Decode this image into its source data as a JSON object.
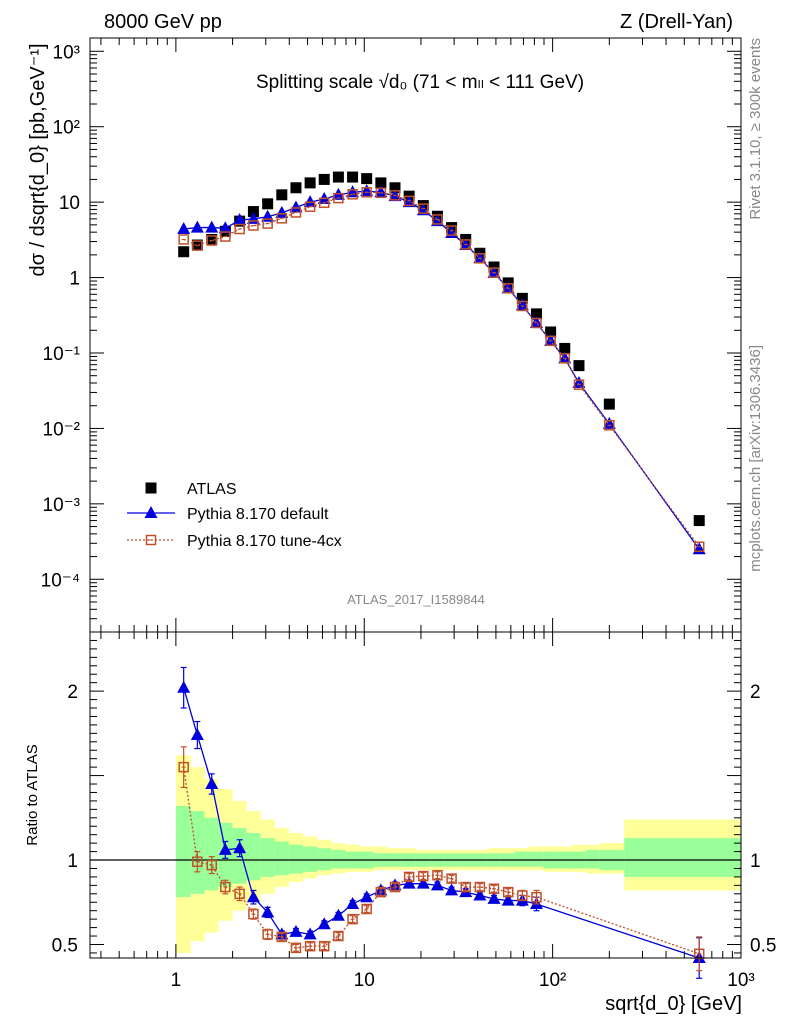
{
  "header": {
    "left": "8000 GeV pp",
    "right": "Z (Drell-Yan)"
  },
  "side": {
    "rivet": "Rivet 3.1.10, ≥ 300k events",
    "mcplots": "mcplots.cern.ch [arXiv:1306.3436]"
  },
  "chart_data": [
    {
      "type": "scatter",
      "panel": "main",
      "title": "Splitting scale √d₀ (71 < mₗₗ < 111 GeV)",
      "ylabel": "dσ / dsqrt{d_0} [pb,GeV⁻¹]",
      "xscale": "log",
      "yscale": "log",
      "xlim": [
        0.35,
        1000
      ],
      "ylim": [
        2e-05,
        1500
      ],
      "yticks": [
        "10³",
        "10²",
        "10",
        "1",
        "10⁻¹",
        "10⁻²",
        "10⁻³",
        "10⁻⁴"
      ],
      "legend_position": "bottom-left",
      "analysis_label": "ATLAS_2017_I1589844",
      "x": [
        1.1,
        1.3,
        1.55,
        1.83,
        2.18,
        2.58,
        3.07,
        3.65,
        4.34,
        5.16,
        6.13,
        7.29,
        8.67,
        10.3,
        12.25,
        14.56,
        17.31,
        20.58,
        24.46,
        29.08,
        34.57,
        41.1,
        48.86,
        58.09,
        69.05,
        82.09,
        97.59,
        116,
        138,
        200,
        600
      ],
      "series": [
        {
          "name": "ATLAS",
          "color": "#000000",
          "marker": "square",
          "values": [
            2.2,
            2.7,
            3.2,
            4.1,
            5.6,
            7.5,
            9.5,
            12.5,
            15.5,
            18.0,
            20.0,
            21.5,
            21.5,
            20.5,
            18.0,
            15.5,
            12.0,
            9.0,
            6.5,
            4.6,
            3.2,
            2.1,
            1.38,
            0.85,
            0.53,
            0.33,
            0.19,
            0.115,
            0.068,
            0.021,
            0.0006
          ]
        },
        {
          "name": "Pythia 8.170 default",
          "color": "#0000dd",
          "marker": "triangle",
          "values": [
            4.4,
            4.6,
            4.6,
            4.5,
            5.8,
            6.0,
            6.4,
            7.2,
            8.5,
            10.0,
            11.0,
            12.5,
            13.5,
            14.0,
            13.5,
            12.0,
            10.0,
            7.8,
            5.6,
            3.9,
            2.7,
            1.8,
            1.15,
            0.72,
            0.43,
            0.25,
            0.145,
            0.085,
            0.04,
            0.0115,
            0.00025
          ]
        },
        {
          "name": "Pythia 8.170 tune-4cx",
          "color": "#c0502a",
          "marker": "open-square",
          "values": [
            3.2,
            2.65,
            3.1,
            3.5,
            4.4,
            4.9,
            5.2,
            6.1,
            7.3,
            8.7,
            9.8,
            11.3,
            12.7,
            13.5,
            13.3,
            12.3,
            10.4,
            8.2,
            5.9,
            4.2,
            2.75,
            1.8,
            1.16,
            0.72,
            0.42,
            0.25,
            0.145,
            0.085,
            0.038,
            0.011,
            0.00027
          ]
        }
      ]
    },
    {
      "type": "line",
      "panel": "ratio",
      "xlabel": "sqrt{d_0} [GeV]",
      "ylabel": "Ratio to ATLAS",
      "xscale": "log",
      "xlim": [
        0.35,
        1000
      ],
      "ylim": [
        0.42,
        2.35
      ],
      "yticks": [
        "2",
        "1",
        "0.5"
      ],
      "xticks": [
        "1",
        "10",
        "10²",
        "10³"
      ],
      "reference_line": 1,
      "uncertainty_bands": {
        "bins": [
          1.0,
          1.2,
          1.42,
          1.68,
          2.0,
          2.37,
          2.82,
          3.35,
          3.98,
          4.73,
          5.62,
          6.68,
          7.94,
          9.44,
          11.2,
          13.3,
          15.8,
          18.8,
          22.4,
          26.6,
          31.6,
          37.6,
          44.7,
          53.1,
          63.1,
          75.0,
          89.1,
          106,
          126,
          150,
          178,
          240,
          1000
        ],
        "outer_low": [
          0.45,
          0.52,
          0.57,
          0.64,
          0.7,
          0.75,
          0.8,
          0.84,
          0.87,
          0.89,
          0.91,
          0.92,
          0.93,
          0.93,
          0.94,
          0.94,
          0.94,
          0.94,
          0.94,
          0.94,
          0.94,
          0.94,
          0.94,
          0.94,
          0.94,
          0.94,
          0.93,
          0.93,
          0.93,
          0.92,
          0.92,
          0.82
        ],
        "outer_high": [
          1.62,
          1.55,
          1.48,
          1.42,
          1.35,
          1.29,
          1.24,
          1.19,
          1.16,
          1.14,
          1.12,
          1.1,
          1.09,
          1.08,
          1.08,
          1.07,
          1.07,
          1.06,
          1.06,
          1.06,
          1.06,
          1.06,
          1.07,
          1.07,
          1.07,
          1.08,
          1.08,
          1.08,
          1.09,
          1.09,
          1.1,
          1.24
        ],
        "inner_low": [
          0.78,
          0.8,
          0.82,
          0.84,
          0.86,
          0.88,
          0.9,
          0.91,
          0.92,
          0.93,
          0.94,
          0.95,
          0.95,
          0.95,
          0.96,
          0.96,
          0.96,
          0.96,
          0.96,
          0.96,
          0.96,
          0.96,
          0.96,
          0.96,
          0.96,
          0.96,
          0.95,
          0.95,
          0.95,
          0.95,
          0.94,
          0.9
        ],
        "inner_high": [
          1.32,
          1.29,
          1.25,
          1.22,
          1.19,
          1.16,
          1.13,
          1.11,
          1.09,
          1.08,
          1.07,
          1.06,
          1.05,
          1.05,
          1.04,
          1.04,
          1.04,
          1.04,
          1.04,
          1.04,
          1.04,
          1.04,
          1.04,
          1.04,
          1.05,
          1.05,
          1.05,
          1.05,
          1.05,
          1.06,
          1.06,
          1.13
        ],
        "outer_color": "#ffff99",
        "inner_color": "#99ff99"
      },
      "x": [
        1.1,
        1.3,
        1.55,
        1.83,
        2.18,
        2.58,
        3.07,
        3.65,
        4.34,
        5.16,
        6.13,
        7.29,
        8.67,
        10.3,
        12.25,
        14.56,
        17.31,
        20.58,
        24.46,
        29.08,
        34.57,
        41.1,
        48.86,
        58.09,
        69.05,
        82.09,
        600
      ],
      "series": [
        {
          "name": "Pythia 8.170 default",
          "color": "#0000dd",
          "marker": "triangle",
          "values": [
            2.02,
            1.74,
            1.45,
            1.06,
            1.07,
            0.78,
            0.69,
            0.56,
            0.575,
            0.56,
            0.62,
            0.67,
            0.74,
            0.78,
            0.82,
            0.85,
            0.86,
            0.86,
            0.85,
            0.82,
            0.81,
            0.79,
            0.77,
            0.76,
            0.76,
            0.74,
            0.42
          ],
          "errors": [
            0.12,
            0.08,
            0.06,
            0.05,
            0.05,
            0.04,
            0.03,
            0.02,
            0.02,
            0.02,
            0.02,
            0.02,
            0.02,
            0.02,
            0.02,
            0.02,
            0.02,
            0.02,
            0.02,
            0.02,
            0.02,
            0.02,
            0.02,
            0.02,
            0.03,
            0.04,
            0.12
          ]
        },
        {
          "name": "Pythia 8.170 tune-4cx",
          "color": "#c0502a",
          "marker": "open-square",
          "values": [
            1.55,
            0.99,
            0.97,
            0.84,
            0.8,
            0.68,
            0.56,
            0.545,
            0.48,
            0.49,
            0.49,
            0.55,
            0.65,
            0.71,
            0.81,
            0.84,
            0.9,
            0.905,
            0.91,
            0.89,
            0.84,
            0.84,
            0.83,
            0.81,
            0.79,
            0.78,
            0.445
          ],
          "errors": [
            0.12,
            0.06,
            0.05,
            0.04,
            0.04,
            0.03,
            0.03,
            0.02,
            0.02,
            0.02,
            0.02,
            0.02,
            0.02,
            0.02,
            0.02,
            0.02,
            0.02,
            0.02,
            0.02,
            0.02,
            0.02,
            0.02,
            0.02,
            0.02,
            0.03,
            0.04,
            0.1
          ]
        }
      ]
    }
  ]
}
